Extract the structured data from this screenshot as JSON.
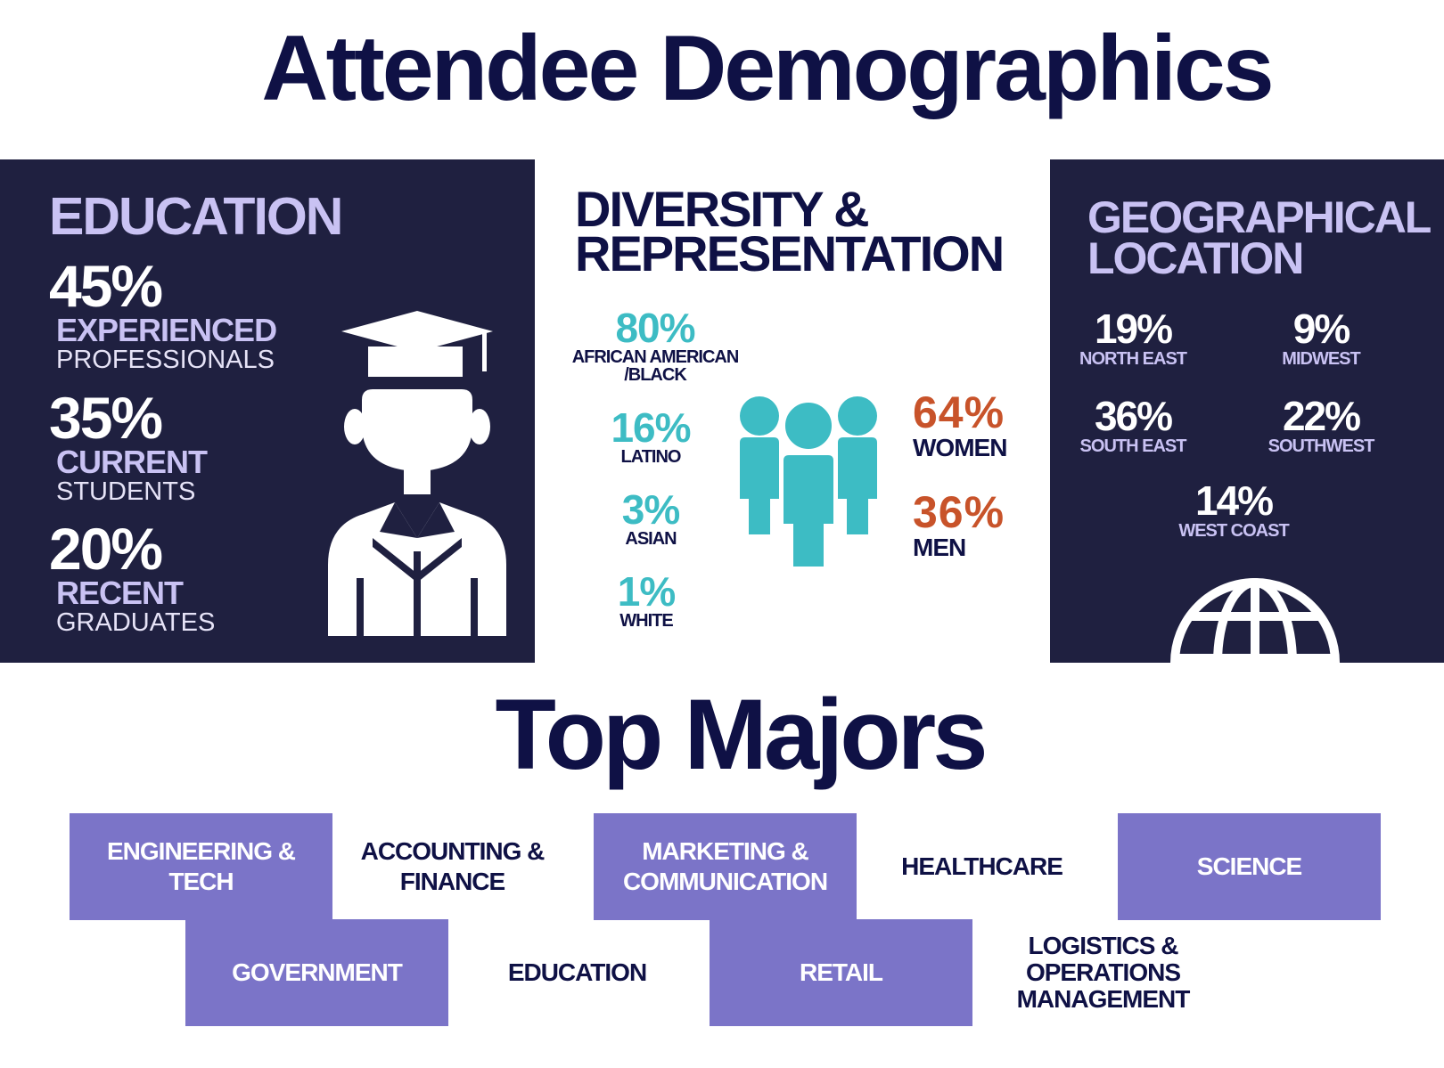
{
  "title": "Attendee Demographics",
  "colors": {
    "navy": "#1f2040",
    "lavender": "#c9c2f3",
    "teal": "#3dbcc4",
    "orange": "#c8532a",
    "purple": "#7b74c8"
  },
  "education": {
    "title": "EDUCATION",
    "icon": "graduate-icon",
    "stats": [
      {
        "pct": "45%",
        "label": "EXPERIENCED",
        "sub": "PROFESSIONALS"
      },
      {
        "pct": "35%",
        "label": "CURRENT",
        "sub": "STUDENTS"
      },
      {
        "pct": "20%",
        "label": "RECENT",
        "sub": "GRADUATES"
      }
    ]
  },
  "diversity": {
    "title_line1": "DIVERSITY &",
    "title_line2": "REPRESENTATION",
    "icon": "people-group-icon",
    "ethnicity": [
      {
        "pct": "80%",
        "label_line1": "AFRICAN AMERICAN",
        "label_line2": "/BLACK"
      },
      {
        "pct": "16%",
        "label_line1": "LATINO",
        "label_line2": ""
      },
      {
        "pct": "3%",
        "label_line1": "ASIAN",
        "label_line2": ""
      },
      {
        "pct": "1%",
        "label_line1": "WHITE",
        "label_line2": ""
      }
    ],
    "gender": [
      {
        "pct": "64%",
        "label": "WOMEN"
      },
      {
        "pct": "36%",
        "label": "MEN"
      }
    ]
  },
  "geography": {
    "title_line1": "GEOGRAPHICAL",
    "title_line2": "LOCATION",
    "icon": "globe-icon",
    "regions": [
      {
        "pct": "19%",
        "label": "NORTH EAST"
      },
      {
        "pct": "9%",
        "label": "MIDWEST"
      },
      {
        "pct": "36%",
        "label": "SOUTH EAST"
      },
      {
        "pct": "22%",
        "label": "SOUTHWEST"
      },
      {
        "pct": "14%",
        "label": "WEST COAST"
      }
    ]
  },
  "majors": {
    "title": "Top Majors",
    "items": [
      {
        "line1": "ENGINEERING &",
        "line2": "TECH"
      },
      {
        "line1": "ACCOUNTING &",
        "line2": "FINANCE"
      },
      {
        "line1": "MARKETING &",
        "line2": "COMMUNICATION"
      },
      {
        "line1": "HEALTHCARE",
        "line2": ""
      },
      {
        "line1": "SCIENCE",
        "line2": ""
      },
      {
        "line1": "GOVERNMENT",
        "line2": ""
      },
      {
        "line1": "EDUCATION",
        "line2": ""
      },
      {
        "line1": "RETAIL",
        "line2": ""
      },
      {
        "line1": "LOGISTICS &",
        "line2": "OPERATIONS",
        "line3": "MANAGEMENT"
      }
    ]
  }
}
